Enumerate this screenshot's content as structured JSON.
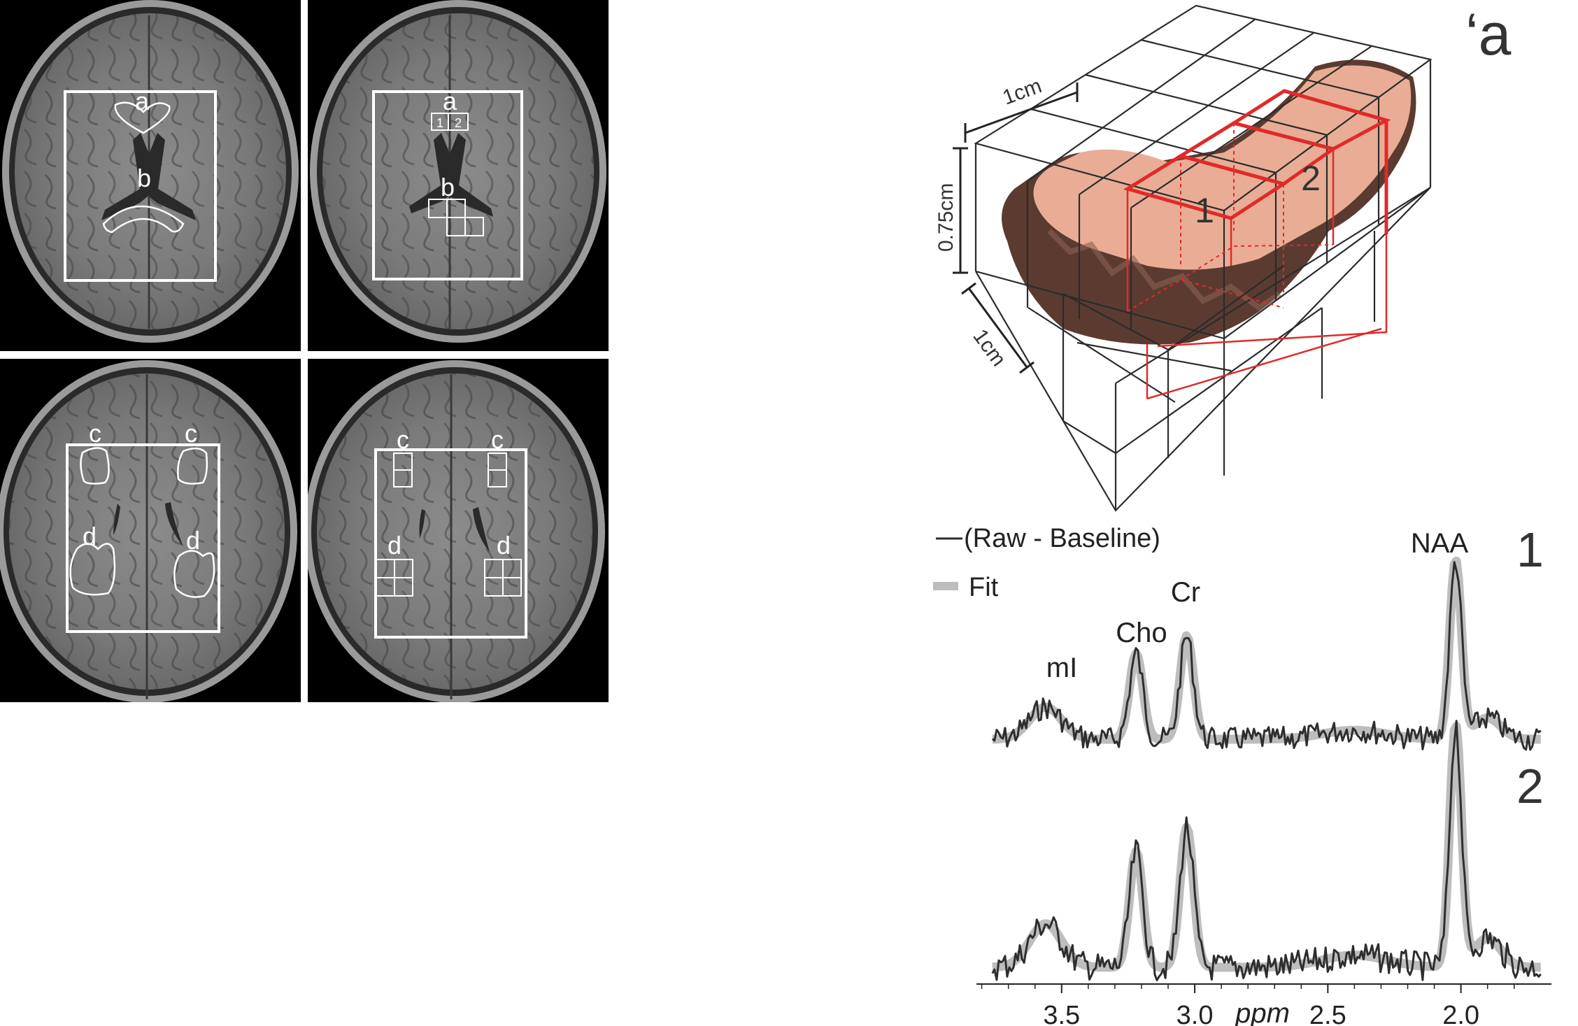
{
  "panels": {
    "top_left": {
      "labels": {
        "a": "a",
        "b": "b"
      }
    },
    "top_right": {
      "labels": {
        "a": "a",
        "b": "b"
      },
      "voxel_labels": [
        "1",
        "2"
      ]
    },
    "bottom_left": {
      "labels": {
        "c_left": "c",
        "c_right": "c",
        "d_left": "d",
        "d_right": "d"
      }
    },
    "bottom_right": {
      "labels": {
        "c_left": "c",
        "c_right": "c",
        "d_left": "d",
        "d_right": "d"
      }
    }
  },
  "render3d": {
    "panel_label": "‘a",
    "dim_width": "1cm",
    "dim_height": "0.75cm",
    "dim_depth": "1cm",
    "voxel_labels": [
      "1",
      "2"
    ],
    "colors": {
      "grid": "#2b2b2b",
      "highlight": "#e02a2a",
      "tissue_top": "#e9ad95",
      "tissue_side": "#5b3b30"
    }
  },
  "spectrum": {
    "legend": [
      {
        "label": "(Raw - Baseline)",
        "style": "raw"
      },
      {
        "label": "Fit",
        "style": "fit"
      }
    ],
    "trace_labels": [
      "1",
      "2"
    ],
    "peak_labels": {
      "mI": "mI",
      "Cho": "Cho",
      "Cr": "Cr",
      "NAA": "NAA"
    },
    "x_axis": {
      "label": "ppm",
      "reversed": true,
      "range": [
        3.82,
        1.66
      ],
      "ticks": [
        "3.5",
        "3.0",
        "2.5",
        "2.0"
      ],
      "tick_values": [
        3.5,
        3.0,
        2.5,
        2.0
      ]
    },
    "colors": {
      "raw": "#2e2e2e",
      "fit": "#bdbdbd"
    }
  }
}
